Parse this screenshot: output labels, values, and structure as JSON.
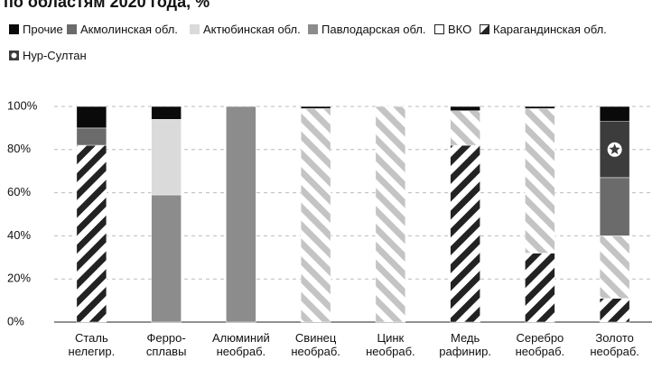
{
  "chart_data": {
    "type": "stacked-bar",
    "title": "по областям 2020 года, %",
    "categories": [
      "Сталь\nнелегир.",
      "Ферро-\nсплавы",
      "Алюминий\nнеобраб.",
      "Свинец\nнеобраб.",
      "Цинк\nнеобраб.",
      "Медь\nрафинир.",
      "Серебро\nнеобраб.",
      "Золото\nнеобраб."
    ],
    "series": [
      {
        "name": "Карагандинская обл.",
        "color": "#222222",
        "pattern": "hatch-right",
        "values": [
          82,
          null,
          null,
          null,
          null,
          82,
          32,
          11
        ]
      },
      {
        "name": "ВКО",
        "color": "#c4c4c4",
        "pattern": "hatch-left",
        "values": [
          null,
          null,
          null,
          99,
          100,
          16,
          67,
          29
        ]
      },
      {
        "name": "Павлодарская обл.",
        "color": "#8c8c8c",
        "values": [
          null,
          59,
          100,
          null,
          null,
          null,
          null,
          null
        ]
      },
      {
        "name": "Актюбинская обл.",
        "color": "#dadada",
        "values": [
          null,
          35,
          null,
          null,
          null,
          null,
          null,
          null
        ]
      },
      {
        "name": "Акмолинская обл.",
        "color": "#6b6b6b",
        "values": [
          8,
          null,
          null,
          null,
          null,
          null,
          null,
          27
        ]
      },
      {
        "name": "Нур-Султан",
        "color": "#3c3c3c",
        "pattern": "star",
        "values": [
          null,
          null,
          null,
          null,
          null,
          null,
          null,
          26
        ]
      },
      {
        "name": "Прочие",
        "color": "#0a0a0a",
        "values": [
          10,
          6,
          null,
          1,
          null,
          2,
          1,
          7
        ]
      }
    ],
    "ylim": [
      0,
      100
    ],
    "yticks": [
      {
        "value": 0,
        "label": "0%"
      },
      {
        "value": 20,
        "label": "20%"
      },
      {
        "value": 40,
        "label": "40%"
      },
      {
        "value": 60,
        "label": "60%"
      },
      {
        "value": 80,
        "label": "80%"
      },
      {
        "value": 100,
        "label": "100%"
      }
    ],
    "grid": true
  }
}
